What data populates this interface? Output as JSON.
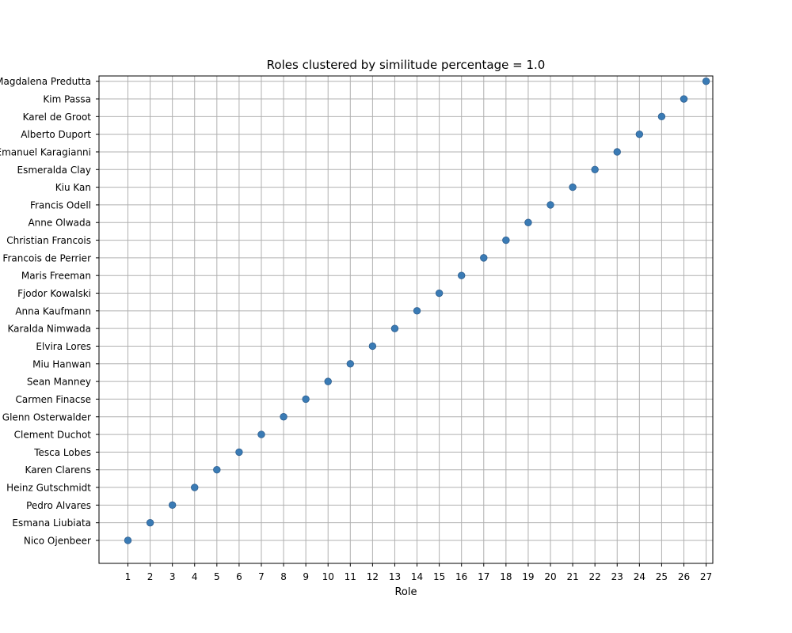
{
  "chart_data": {
    "type": "scatter",
    "title": "Roles clustered by similitude percentage = 1.0",
    "xlabel": "Role",
    "ylabel": "",
    "x_ticks": [
      1,
      2,
      3,
      4,
      5,
      6,
      7,
      8,
      9,
      10,
      11,
      12,
      13,
      14,
      15,
      16,
      17,
      18,
      19,
      20,
      21,
      22,
      23,
      24,
      25,
      26,
      27
    ],
    "xlim": [
      -0.3,
      27.3
    ],
    "ylim": [
      -0.3,
      27.3
    ],
    "y_categories": [
      "Nico Ojenbeer",
      "Esmana Liubiata",
      "Pedro Alvares",
      "Heinz Gutschmidt",
      "Karen Clarens",
      "Tesca Lobes",
      "Clement Duchot",
      "Glenn Osterwalder",
      "Carmen Finacse",
      "Sean Manney",
      "Miu Hanwan",
      "Elvira Lores",
      "Karalda Nimwada",
      "Anna Kaufmann",
      "Fjodor Kowalski",
      "Maris Freeman",
      "Francois de Perrier",
      "Christian Francois",
      "Anne Olwada",
      "Francis Odell",
      "Kiu Kan",
      "Esmeralda Clay",
      "Emanuel Karagianni",
      "Alberto Duport",
      "Karel de Groot",
      "Kim Passa",
      "Magdalena Predutta"
    ],
    "points": [
      {
        "x": 1,
        "y": "Nico Ojenbeer"
      },
      {
        "x": 2,
        "y": "Esmana Liubiata"
      },
      {
        "x": 3,
        "y": "Pedro Alvares"
      },
      {
        "x": 4,
        "y": "Heinz Gutschmidt"
      },
      {
        "x": 5,
        "y": "Karen Clarens"
      },
      {
        "x": 6,
        "y": "Tesca Lobes"
      },
      {
        "x": 7,
        "y": "Clement Duchot"
      },
      {
        "x": 8,
        "y": "Glenn Osterwalder"
      },
      {
        "x": 9,
        "y": "Carmen Finacse"
      },
      {
        "x": 10,
        "y": "Sean Manney"
      },
      {
        "x": 11,
        "y": "Miu Hanwan"
      },
      {
        "x": 12,
        "y": "Elvira Lores"
      },
      {
        "x": 13,
        "y": "Karalda Nimwada"
      },
      {
        "x": 14,
        "y": "Anna Kaufmann"
      },
      {
        "x": 15,
        "y": "Fjodor Kowalski"
      },
      {
        "x": 16,
        "y": "Maris Freeman"
      },
      {
        "x": 17,
        "y": "Francois de Perrier"
      },
      {
        "x": 18,
        "y": "Christian Francois"
      },
      {
        "x": 19,
        "y": "Anne Olwada"
      },
      {
        "x": 20,
        "y": "Francis Odell"
      },
      {
        "x": 21,
        "y": "Kiu Kan"
      },
      {
        "x": 22,
        "y": "Esmeralda Clay"
      },
      {
        "x": 23,
        "y": "Emanuel Karagianni"
      },
      {
        "x": 24,
        "y": "Alberto Duport"
      },
      {
        "x": 25,
        "y": "Karel de Groot"
      },
      {
        "x": 26,
        "y": "Kim Passa"
      },
      {
        "x": 27,
        "y": "Magdalena Predutta"
      }
    ],
    "grid": true,
    "legend": "none"
  },
  "colors": {
    "marker_fill": "#3a7bb5",
    "marker_edge": "#2f5f8f",
    "grid": "#b0b0b0",
    "axes": "#000000",
    "background": "#ffffff"
  }
}
